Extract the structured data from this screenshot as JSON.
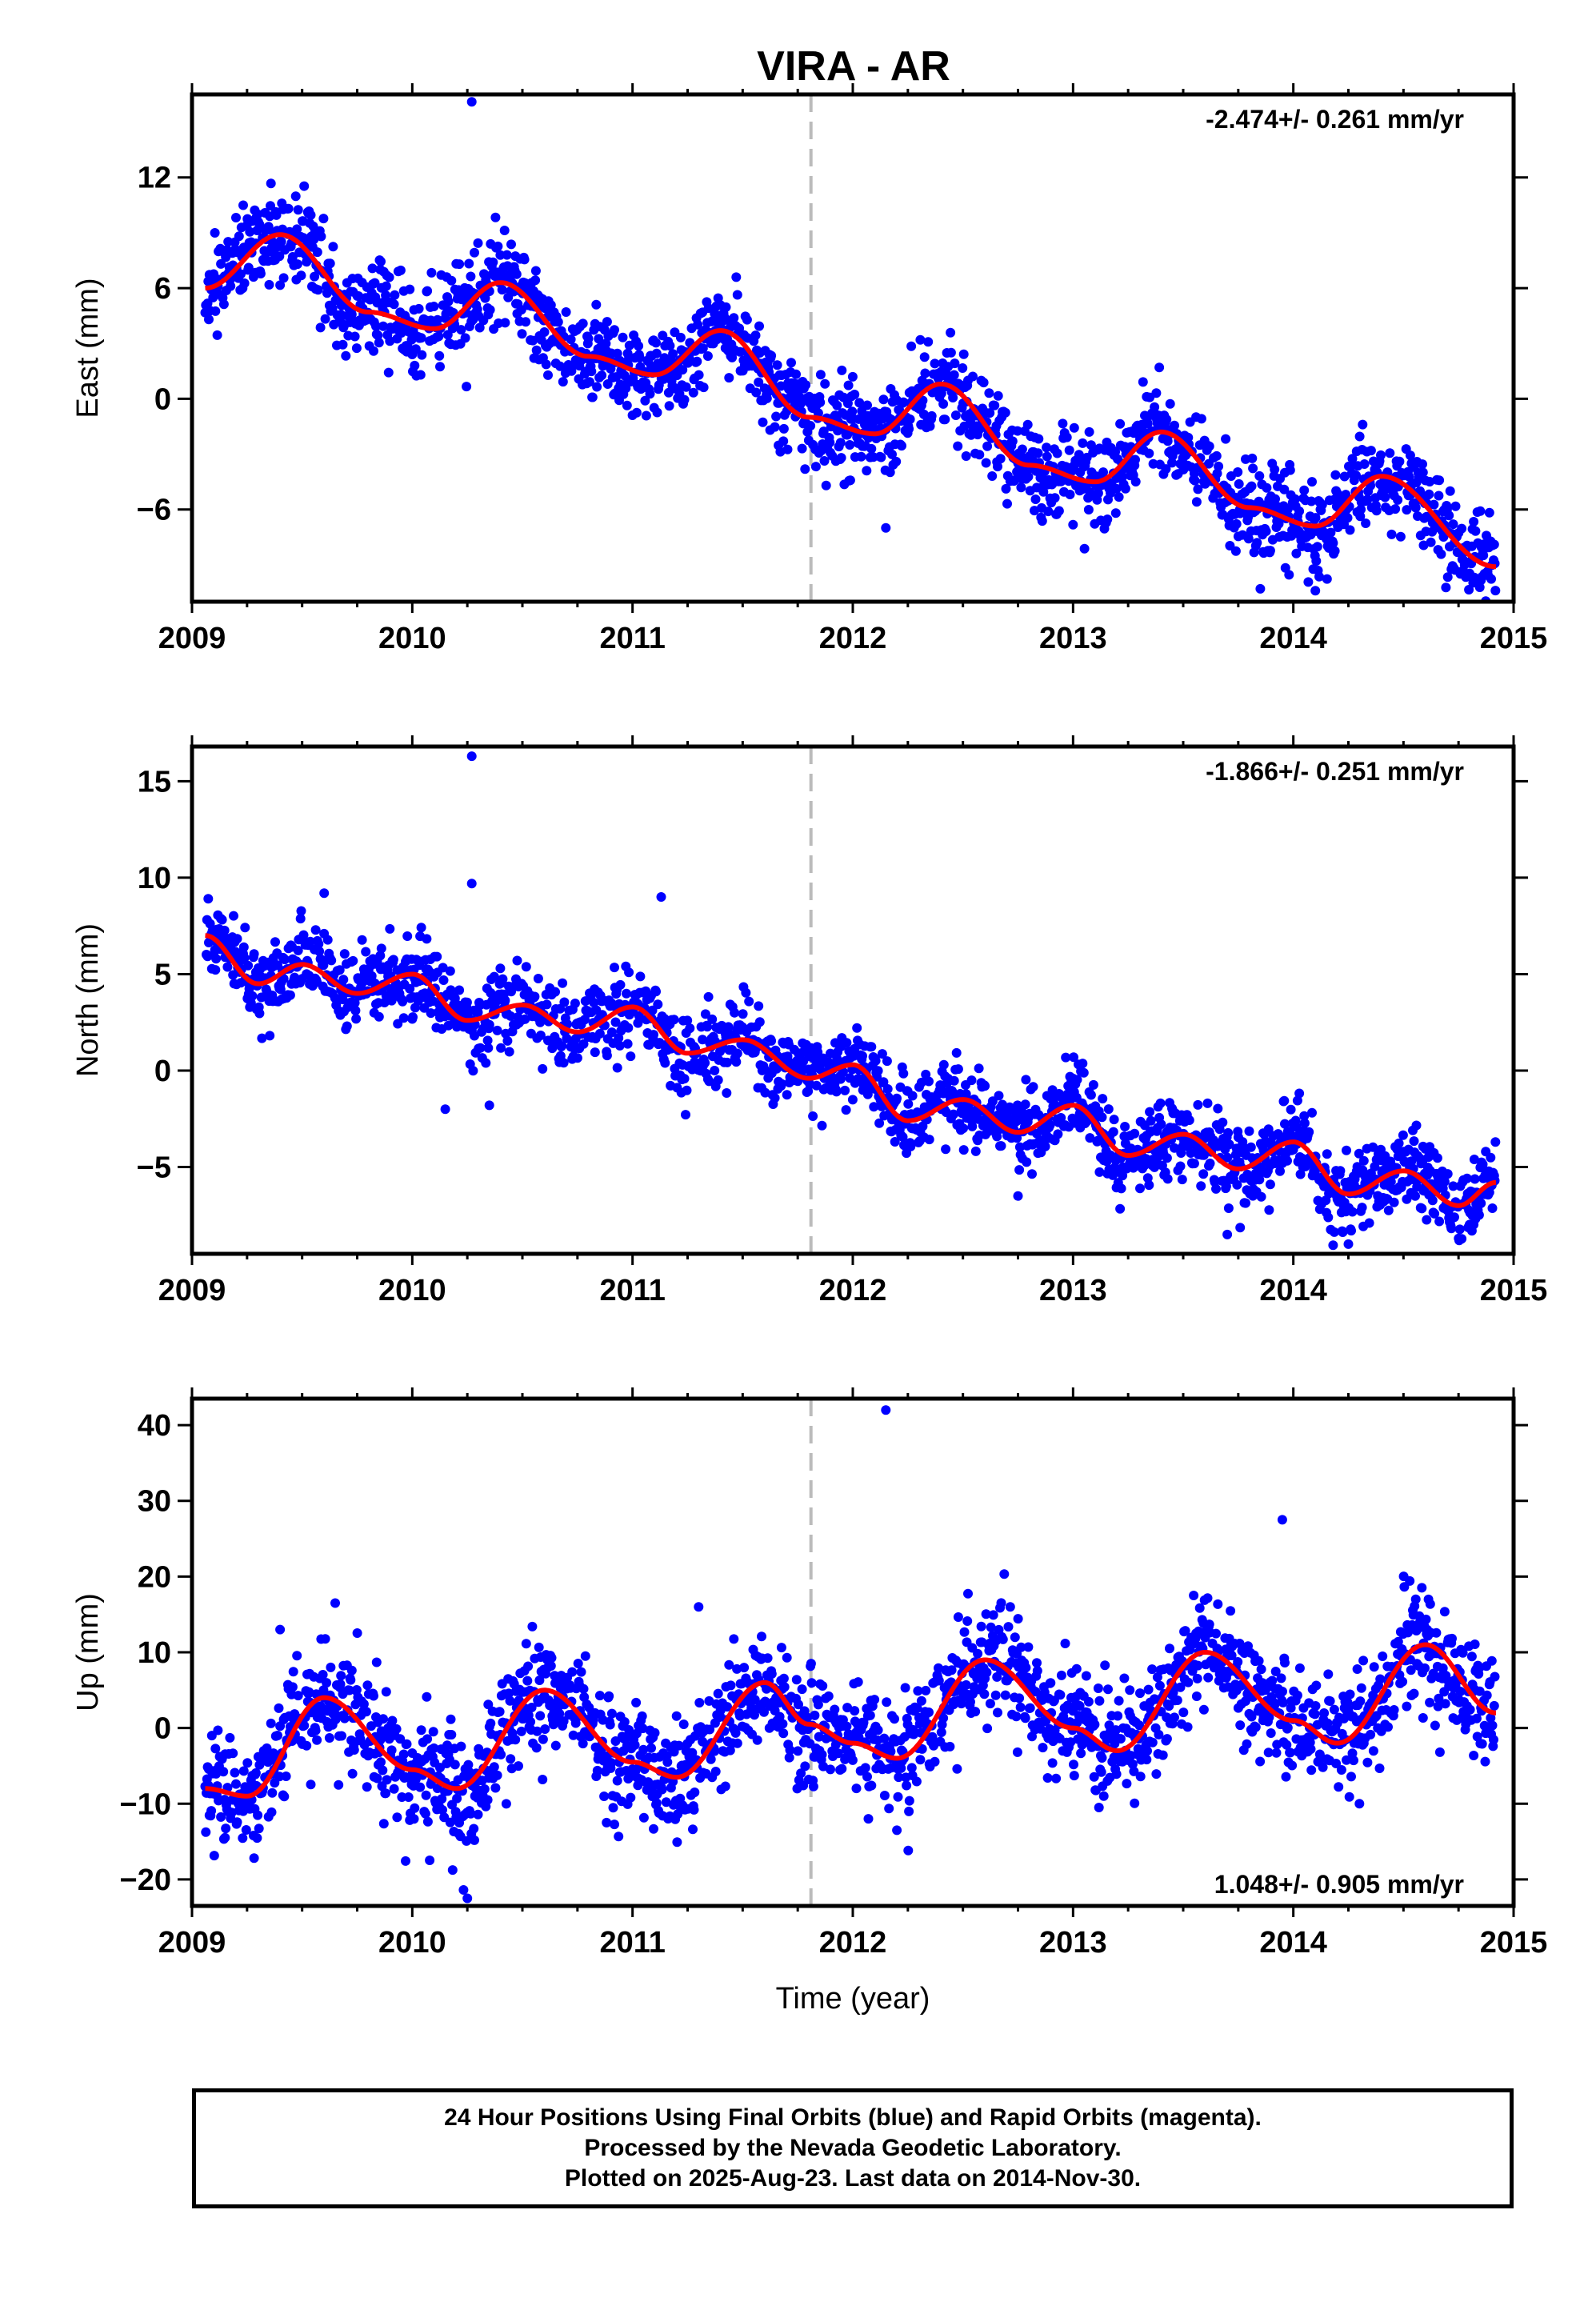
{
  "title": "VIRA - AR",
  "chart_data": [
    {
      "type": "scatter",
      "component": "east",
      "ylabel": "East (mm)",
      "xlabel": "",
      "xlim": [
        2009,
        2015
      ],
      "ylim": [
        -11,
        16.5
      ],
      "xticks": [
        2009,
        2010,
        2011,
        2012,
        2013,
        2014,
        2015
      ],
      "yticks": [
        -6,
        0,
        6,
        12
      ],
      "rate_text": "-2.474+/- 0.261 mm/yr",
      "rate_position": "top-right",
      "dashed_line_x": 2011.81,
      "model": {
        "start": 2009.06,
        "end": 2014.92,
        "origin": 2009.06,
        "intercept": 7.2,
        "rate": -2.474,
        "amplitude": 2.7,
        "peak": 2009.4,
        "step": -0.8,
        "curve": [
          [
            2009.06,
            6.0
          ],
          [
            2009.4,
            8.9
          ],
          [
            2009.8,
            4.7
          ],
          [
            2010.1,
            3.8
          ],
          [
            2010.4,
            6.3
          ],
          [
            2010.8,
            2.3
          ],
          [
            2011.1,
            1.3
          ],
          [
            2011.4,
            3.7
          ],
          [
            2011.8,
            -1.0
          ],
          [
            2012.1,
            -1.9
          ],
          [
            2012.4,
            0.8
          ],
          [
            2012.8,
            -3.6
          ],
          [
            2013.1,
            -4.5
          ],
          [
            2013.4,
            -1.8
          ],
          [
            2013.8,
            -5.9
          ],
          [
            2014.1,
            -6.9
          ],
          [
            2014.4,
            -4.2
          ],
          [
            2014.92,
            -9.1
          ]
        ]
      },
      "scatter": {
        "sigma": 1.2,
        "seed": 11
      },
      "outliers": [
        [
          2010.27,
          16.1
        ],
        [
          2014.2,
          -6.8
        ],
        [
          2013.85,
          -10.3
        ],
        [
          2014.1,
          -10.4
        ],
        [
          2012.15,
          -7.0
        ]
      ]
    },
    {
      "type": "scatter",
      "component": "north",
      "ylabel": "North (mm)",
      "xlabel": "",
      "xlim": [
        2009,
        2015
      ],
      "ylim": [
        -9.5,
        16.8
      ],
      "xticks": [
        2009,
        2010,
        2011,
        2012,
        2013,
        2014,
        2015
      ],
      "yticks": [
        -5,
        0,
        5,
        10,
        15
      ],
      "rate_text": "-1.866+/- 0.251 mm/yr",
      "rate_position": "top-right",
      "dashed_line_x": 2011.81,
      "model": {
        "start": 2009.06,
        "end": 2014.92,
        "origin": 2009.06,
        "intercept": 5.8,
        "rate": -1.866,
        "amplitude": 0.9,
        "peak": 2009.52,
        "step": -1.1,
        "curve": [
          [
            2009.06,
            7.0
          ],
          [
            2009.3,
            4.5
          ],
          [
            2009.5,
            5.5
          ],
          [
            2009.75,
            4.0
          ],
          [
            2010.0,
            5.0
          ],
          [
            2010.25,
            2.6
          ],
          [
            2010.5,
            3.4
          ],
          [
            2010.75,
            2.0
          ],
          [
            2011.0,
            3.3
          ],
          [
            2011.25,
            0.9
          ],
          [
            2011.5,
            1.6
          ],
          [
            2011.8,
            -0.4
          ],
          [
            2012.0,
            0.3
          ],
          [
            2012.25,
            -2.6
          ],
          [
            2012.5,
            -1.5
          ],
          [
            2012.75,
            -3.2
          ],
          [
            2013.0,
            -1.8
          ],
          [
            2013.25,
            -4.4
          ],
          [
            2013.5,
            -3.3
          ],
          [
            2013.75,
            -5.1
          ],
          [
            2014.0,
            -3.7
          ],
          [
            2014.25,
            -6.4
          ],
          [
            2014.5,
            -5.2
          ],
          [
            2014.75,
            -7.0
          ],
          [
            2014.92,
            -5.8
          ]
        ]
      },
      "scatter": {
        "sigma": 1.0,
        "seed": 23
      },
      "outliers": [
        [
          2010.27,
          16.3
        ],
        [
          2010.27,
          9.7
        ],
        [
          2011.13,
          9.0
        ],
        [
          2009.6,
          9.2
        ],
        [
          2010.15,
          -2.0
        ],
        [
          2010.35,
          -1.8
        ],
        [
          2012.75,
          -6.5
        ],
        [
          2013.7,
          -8.5
        ],
        [
          2014.25,
          -9.0
        ]
      ]
    },
    {
      "type": "scatter",
      "component": "up",
      "ylabel": "Up (mm)",
      "xlabel": "Time (year)",
      "xlim": [
        2009,
        2015
      ],
      "ylim": [
        -23.5,
        43.5
      ],
      "xticks": [
        2009,
        2010,
        2011,
        2012,
        2013,
        2014,
        2015
      ],
      "yticks": [
        -20,
        -10,
        0,
        10,
        20,
        30,
        40
      ],
      "rate_text": "1.048+/- 0.905 mm/yr",
      "rate_position": "bottom-right",
      "dashed_line_x": 2011.81,
      "model": {
        "start": 2009.06,
        "end": 2014.92,
        "origin": 2009.06,
        "intercept": -2.0,
        "rate": 1.048,
        "amplitude": 6.8,
        "peak": 2009.6,
        "step": 1.5,
        "curve": [
          [
            2009.06,
            -8.0
          ],
          [
            2009.25,
            -9.0
          ],
          [
            2009.6,
            4.0
          ],
          [
            2010.0,
            -5.5
          ],
          [
            2010.2,
            -8.0
          ],
          [
            2010.6,
            5.0
          ],
          [
            2011.0,
            -4.5
          ],
          [
            2011.2,
            -6.5
          ],
          [
            2011.6,
            6.0
          ],
          [
            2011.8,
            0.5
          ],
          [
            2012.0,
            -2.0
          ],
          [
            2012.2,
            -4.0
          ],
          [
            2012.6,
            9.0
          ],
          [
            2013.0,
            0.0
          ],
          [
            2013.2,
            -3.0
          ],
          [
            2013.6,
            10.0
          ],
          [
            2014.0,
            1.0
          ],
          [
            2014.2,
            -2.0
          ],
          [
            2014.6,
            11.0
          ],
          [
            2014.92,
            2.0
          ]
        ]
      },
      "scatter": {
        "sigma": 3.8,
        "seed": 37
      },
      "outliers": [
        [
          2012.15,
          42.0
        ],
        [
          2013.95,
          27.5
        ],
        [
          2010.25,
          -22.5
        ],
        [
          2009.15,
          -14.5
        ],
        [
          2012.2,
          -13.5
        ],
        [
          2011.3,
          16.0
        ],
        [
          2014.3,
          -10.0
        ],
        [
          2009.4,
          13.0
        ],
        [
          2009.65,
          16.5
        ]
      ]
    }
  ],
  "caption": {
    "line1": "24 Hour Positions Using Final Orbits (blue) and Rapid Orbits (magenta).",
    "line2": "Processed by the Nevada Geodetic Laboratory.",
    "line3": "Plotted on 2025-Aug-23. Last data on 2014-Nov-30."
  },
  "colors": {
    "data": "#0000ff",
    "model": "#ff0000",
    "dashed": "#bbbbbb",
    "axis": "#000000"
  }
}
